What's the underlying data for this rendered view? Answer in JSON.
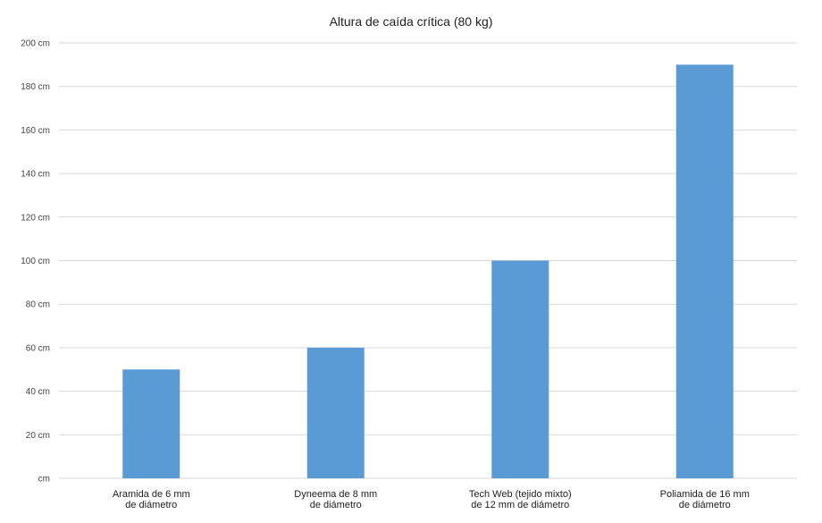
{
  "chart_data": {
    "type": "bar",
    "title": "Altura de caída crítica (80 kg)",
    "categories": [
      [
        "Aramida de 6 mm",
        "de diámetro"
      ],
      [
        "Dyneema de 8 mm",
        "de diámetro"
      ],
      [
        "Tech Web (tejido mixto)",
        "de 12 mm de diámetro"
      ],
      [
        "Poliamida de 16 mm",
        "de diámetro"
      ]
    ],
    "values": [
      50,
      60,
      100,
      190
    ],
    "unit": "cm",
    "ylim": [
      0,
      200
    ],
    "yticks": [
      0,
      20,
      40,
      60,
      80,
      100,
      120,
      140,
      160,
      180,
      200
    ],
    "ytick_labels": [
      "cm",
      "20 cm",
      "40 cm",
      "60 cm",
      "80 cm",
      "100 cm",
      "120 cm",
      "140 cm",
      "160 cm",
      "180 cm",
      "200 cm"
    ],
    "xlabel": "",
    "ylabel": "",
    "grid": true,
    "legend": "none",
    "bar_color": "#5b9bd5",
    "grid_color": "#d9d9d9"
  }
}
